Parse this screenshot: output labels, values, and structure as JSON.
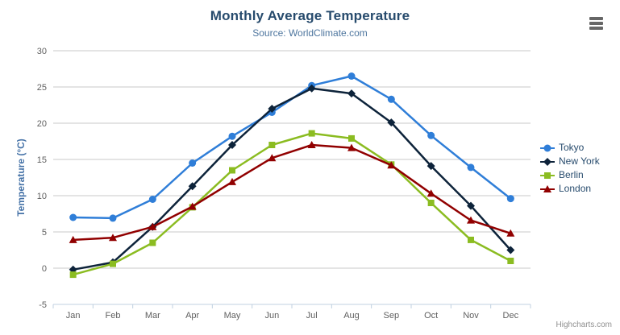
{
  "header": {
    "title": "Monthly Average Temperature",
    "subtitle": "Source: WorldClimate.com"
  },
  "context_menu": {
    "icon": "hamburger-icon"
  },
  "credits": {
    "label": "Highcharts.com"
  },
  "chart_data": {
    "type": "line",
    "title": "Monthly Average Temperature",
    "subtitle": "Source: WorldClimate.com",
    "categories": [
      "Jan",
      "Feb",
      "Mar",
      "Apr",
      "May",
      "Jun",
      "Jul",
      "Aug",
      "Sep",
      "Oct",
      "Nov",
      "Dec"
    ],
    "xlabel": "",
    "ylabel": "Temperature (°C)",
    "ylim": [
      -5,
      30
    ],
    "yticks": [
      -5,
      0,
      5,
      10,
      15,
      20,
      25,
      30
    ],
    "grid": true,
    "legend_position": "right",
    "series": [
      {
        "name": "Tokyo",
        "color": "#2f7ed8",
        "marker": "circle",
        "values": [
          7.0,
          6.9,
          9.5,
          14.5,
          18.2,
          21.5,
          25.2,
          26.5,
          23.3,
          18.3,
          13.9,
          9.6
        ]
      },
      {
        "name": "New York",
        "color": "#0d233a",
        "marker": "diamond",
        "values": [
          -0.2,
          0.8,
          5.7,
          11.3,
          17.0,
          22.0,
          24.8,
          24.1,
          20.1,
          14.1,
          8.6,
          2.5
        ]
      },
      {
        "name": "Berlin",
        "color": "#8bbc21",
        "marker": "square",
        "values": [
          -0.9,
          0.6,
          3.5,
          8.4,
          13.5,
          17.0,
          18.6,
          17.9,
          14.3,
          9.0,
          3.9,
          1.0
        ]
      },
      {
        "name": "London",
        "color": "#910000",
        "marker": "triangle",
        "values": [
          3.9,
          4.2,
          5.7,
          8.5,
          11.9,
          15.2,
          17.0,
          16.6,
          14.2,
          10.3,
          6.6,
          4.8
        ]
      }
    ],
    "colors": {
      "title": "#274b6d",
      "subtitle": "#4d759e",
      "axis_label": "#606060",
      "axis_title": "#4572a7",
      "grid": "#c8c8c8",
      "axis_line": "#c0d0e0",
      "legend_text": "#274b6d",
      "credits": "#909090"
    }
  }
}
